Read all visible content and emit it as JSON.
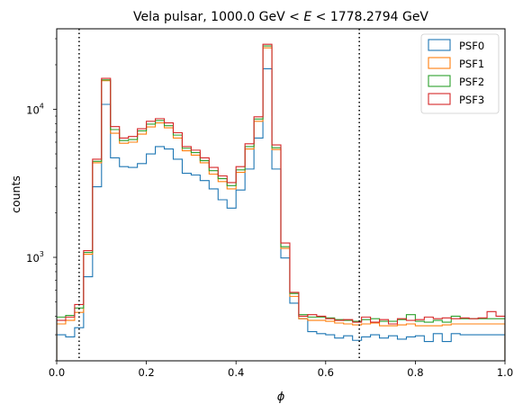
{
  "chart_data": {
    "type": "histogram-step",
    "title_prefix": "Vela pulsar, 1000.0 GeV",
    "title_lt": "<",
    "title_var": "E",
    "title_suffix": "1778.2794 GeV",
    "xlabel": "ϕ",
    "ylabel": "counts",
    "xlim": [
      0,
      1
    ],
    "ylim": [
      200,
      35000
    ],
    "yscale": "log",
    "x_ticks": [
      0.0,
      0.2,
      0.4,
      0.6,
      0.8,
      1.0
    ],
    "x_tick_labels": [
      "0.0",
      "0.2",
      "0.4",
      "0.6",
      "0.8",
      "1.0"
    ],
    "y_major_ticks": [
      {
        "value": 1000,
        "base": "10",
        "exp": "3"
      },
      {
        "value": 10000,
        "base": "10",
        "exp": "4"
      }
    ],
    "vlines": [
      0.05,
      0.675
    ],
    "bin_edges": [
      0,
      0.02,
      0.04,
      0.06,
      0.08,
      0.1,
      0.12,
      0.14,
      0.16,
      0.18,
      0.2,
      0.22,
      0.24,
      0.26,
      0.28,
      0.3,
      0.32,
      0.34,
      0.36,
      0.38,
      0.4,
      0.42,
      0.44,
      0.46,
      0.48,
      0.5,
      0.52,
      0.54,
      0.56,
      0.58,
      0.6,
      0.62,
      0.64,
      0.66,
      0.68,
      0.7,
      0.72,
      0.74,
      0.76,
      0.78,
      0.8,
      0.82,
      0.84,
      0.86,
      0.88,
      0.9,
      0.92,
      0.94,
      0.96,
      0.98,
      1.0
    ],
    "legend_position": "top-right",
    "series": [
      {
        "name": "PSF0",
        "color": "#1f77b4",
        "values": [
          300,
          290,
          335,
          740,
          3000,
          10800,
          4700,
          4100,
          4050,
          4300,
          5000,
          5600,
          5400,
          4600,
          3700,
          3600,
          3300,
          2900,
          2450,
          2150,
          2850,
          3950,
          6400,
          18800,
          3950,
          990,
          490,
          385,
          315,
          305,
          300,
          285,
          295,
          275,
          290,
          300,
          285,
          295,
          280,
          290,
          295,
          270,
          305,
          270,
          305,
          300,
          300,
          300,
          300,
          300
        ]
      },
      {
        "name": "PSF1",
        "color": "#ff7f0e",
        "values": [
          355,
          375,
          425,
          1050,
          4350,
          15600,
          6900,
          5900,
          6000,
          6800,
          7600,
          8100,
          7500,
          6400,
          5250,
          4900,
          4350,
          3650,
          3250,
          2900,
          3750,
          5400,
          8300,
          26000,
          5350,
          1150,
          545,
          385,
          375,
          375,
          370,
          360,
          355,
          350,
          355,
          360,
          345,
          345,
          350,
          355,
          345,
          345,
          345,
          350,
          355,
          355,
          355,
          355,
          355,
          355
        ]
      },
      {
        "name": "PSF2",
        "color": "#2ca02c",
        "values": [
          395,
          405,
          455,
          1080,
          4450,
          15800,
          7300,
          6150,
          6250,
          7150,
          7950,
          8400,
          7750,
          6700,
          5450,
          5100,
          4500,
          3850,
          3400,
          3050,
          3900,
          5600,
          8600,
          26800,
          5500,
          1180,
          570,
          410,
          395,
          395,
          390,
          380,
          375,
          370,
          380,
          385,
          370,
          370,
          380,
          410,
          370,
          365,
          375,
          365,
          400,
          385,
          385,
          385,
          385,
          385
        ]
      },
      {
        "name": "PSF3",
        "color": "#d62728",
        "values": [
          375,
          395,
          480,
          1110,
          4600,
          16200,
          7650,
          6400,
          6550,
          7400,
          8300,
          8650,
          8100,
          6950,
          5600,
          5300,
          4700,
          4050,
          3550,
          3200,
          4100,
          5850,
          8900,
          27500,
          5750,
          1250,
          580,
          400,
          410,
          400,
          385,
          375,
          380,
          365,
          395,
          365,
          380,
          355,
          385,
          375,
          380,
          395,
          385,
          390,
          385,
          390,
          385,
          390,
          430,
          400
        ]
      }
    ]
  }
}
